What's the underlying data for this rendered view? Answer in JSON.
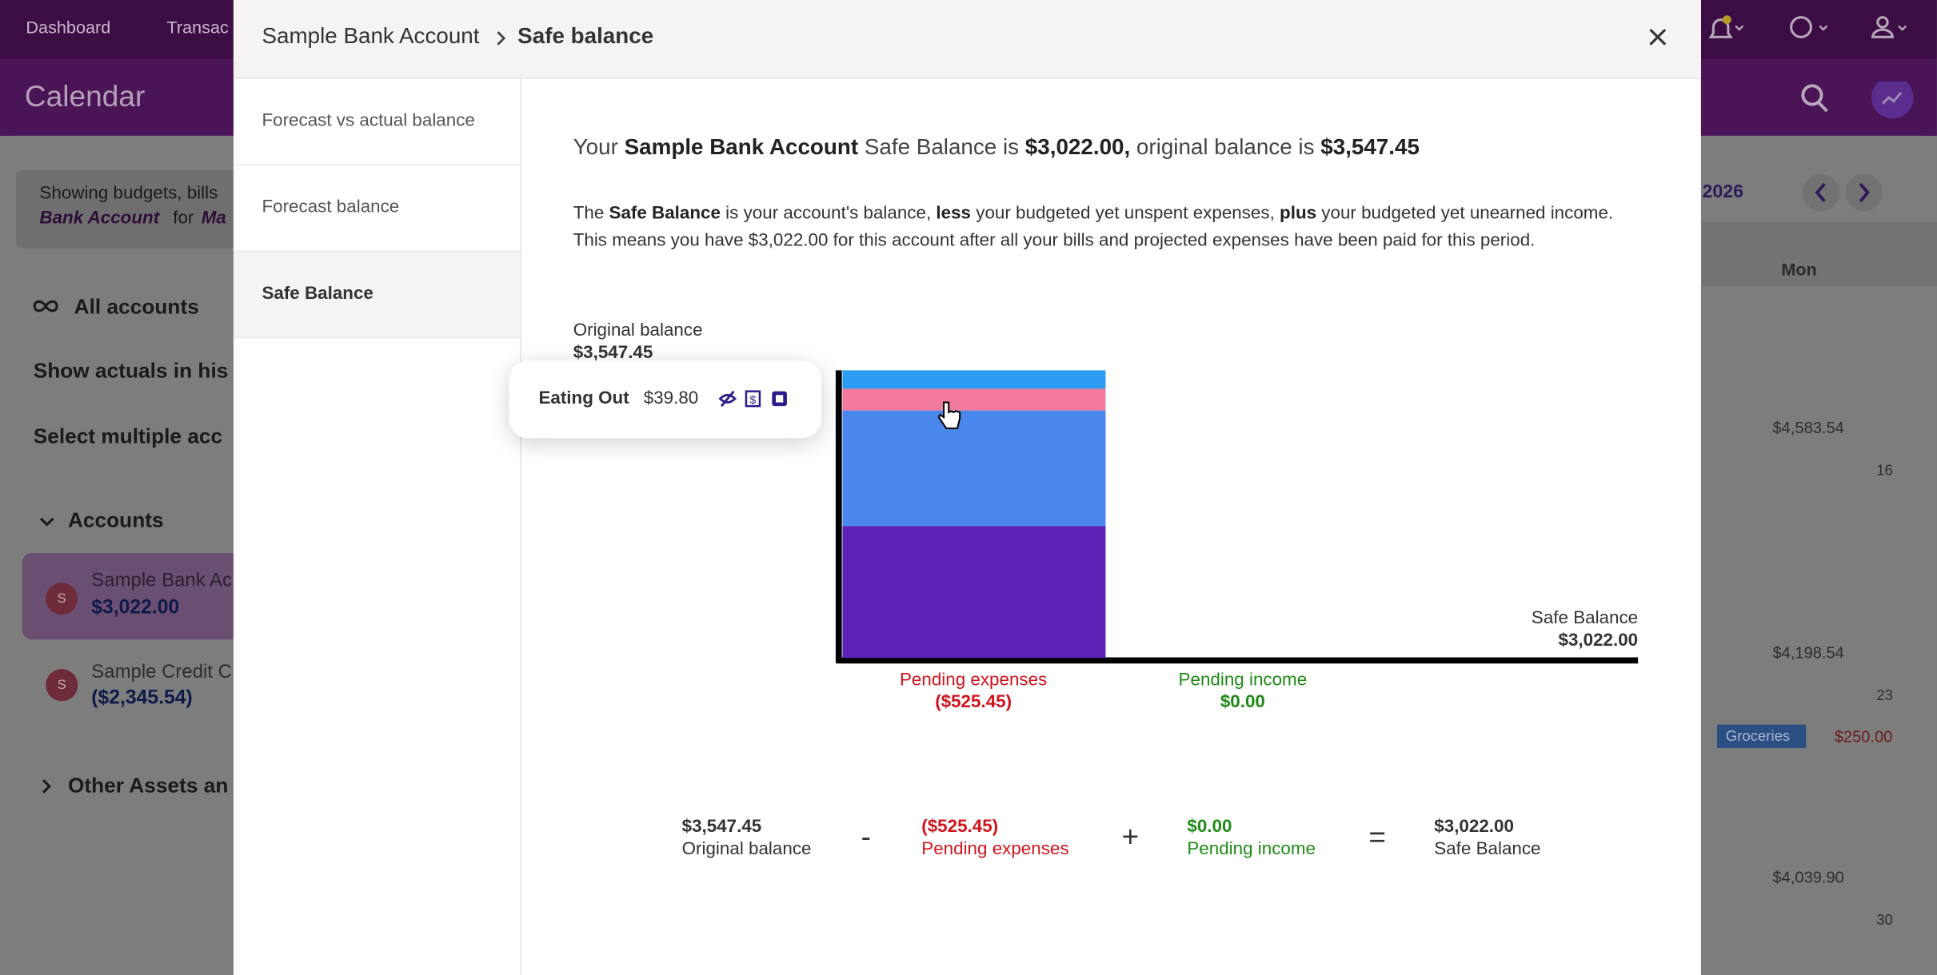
{
  "nav": {
    "items": [
      "Dashboard",
      "Transac"
    ]
  },
  "page_header": {
    "title": "Calendar"
  },
  "sidebar": {
    "notice": [
      "Showing budgets, bills",
      "Bank Account",
      "for",
      "Ma"
    ],
    "all_accounts": "All accounts",
    "show_actuals": "Show actuals in his",
    "select_multiple": "Select multiple acc",
    "accounts_heading": "Accounts",
    "accounts": [
      {
        "initial": "S",
        "name": "Sample Bank Ac",
        "balance": "$3,022.00"
      },
      {
        "initial": "S",
        "name": "Sample Credit C",
        "balance": "($2,345.54)"
      }
    ],
    "other_assets": "Other Assets an"
  },
  "calendar": {
    "year": "2026",
    "weekday": "Mon",
    "balance_1": "$4,583.54",
    "day_1": "16",
    "balance_2": "$4,198.54",
    "day_2": "23",
    "tag": "Groceries",
    "tag_amount": "$250.00",
    "balance_3": "$4,039.90",
    "day_3": "30"
  },
  "modal": {
    "breadcrumb": [
      "Sample Bank Account",
      "Safe balance"
    ],
    "menu": [
      "Forecast vs actual balance",
      "Forecast balance",
      "Safe Balance"
    ],
    "active_menu": 2,
    "summary": [
      {
        "text": "Your "
      },
      {
        "text": "Sample Bank Account",
        "bold": true
      },
      {
        "text": " Safe Balance is "
      },
      {
        "text": "$3,022.00,",
        "bold": true
      },
      {
        "text": " original balance is "
      },
      {
        "text": "$3,547.45",
        "bold": true
      }
    ],
    "description": [
      {
        "text": "The "
      },
      {
        "text": "Safe Balance",
        "bold": true
      },
      {
        "text": " is your account's balance, "
      },
      {
        "text": "less",
        "bold": true
      },
      {
        "text": " your budgeted yet unspent expenses, "
      },
      {
        "text": "plus",
        "bold": true
      },
      {
        "text": " your budgeted yet unearned income."
      }
    ],
    "description_2": "This means you have $3,022.00 for this account after all your bills and projected expenses have been paid for this period.",
    "chart": {
      "original_label": "Original balance",
      "original_value": "$3,547.45",
      "segments": [
        {
          "value": 33.65,
          "color": "#2b9cf2"
        },
        {
          "name": "Eating Out",
          "value": 39.8,
          "value_label": "$39.80",
          "color": "#f27a9c"
        },
        {
          "value": 211,
          "color": "#4a87ec"
        },
        {
          "value": 241,
          "color": "#5b22b5"
        }
      ],
      "expenses_label": "Pending expenses",
      "expenses_value": "($525.45)",
      "income_label": "Pending income",
      "income_value": "$0.00",
      "safe_label": "Safe Balance",
      "safe_value": "$3,022.00"
    },
    "equation": [
      {
        "value": "$3,547.45",
        "label": "Original balance",
        "color": "#333"
      },
      {
        "op": "-"
      },
      {
        "value": "($525.45)",
        "label": "Pending expenses",
        "color": "#d0141c"
      },
      {
        "op": "+"
      },
      {
        "value": "$0.00",
        "label": "Pending income",
        "color": "#1e8a16"
      },
      {
        "op": "="
      },
      {
        "value": "$3,022.00",
        "label": "Safe Balance",
        "color": "#333"
      }
    ]
  }
}
